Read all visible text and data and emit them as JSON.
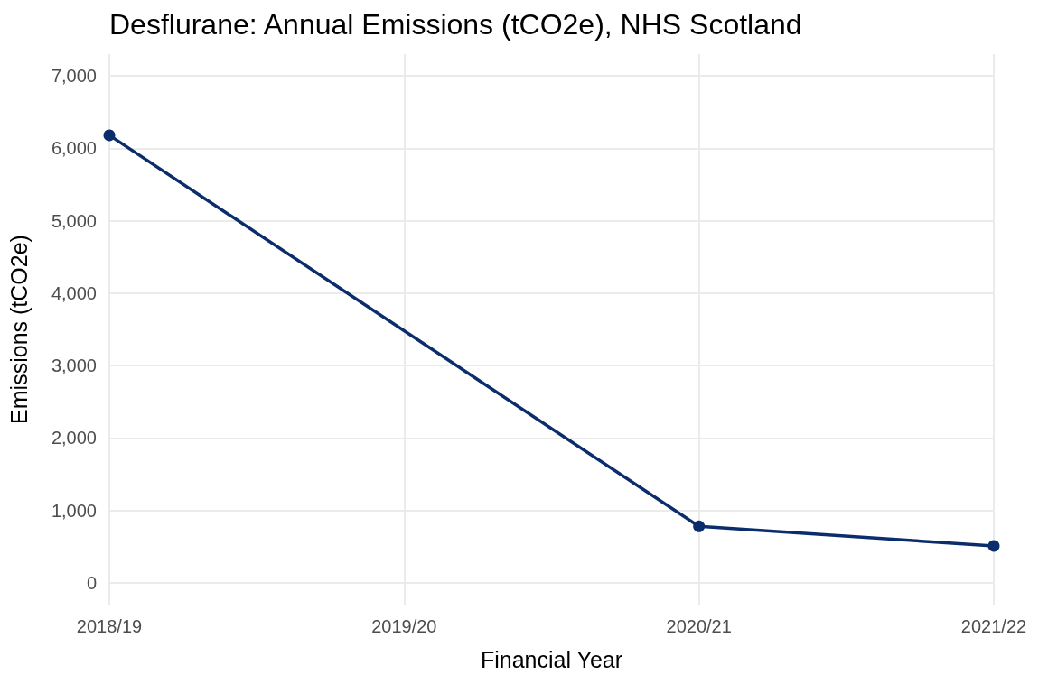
{
  "chart_data": {
    "type": "line",
    "title": "Desflurane: Annual Emissions (tCO2e), NHS Scotland",
    "xlabel": "Financial Year",
    "ylabel": "Emissions (tCO2e)",
    "categories": [
      "2018/19",
      "2019/20",
      "2020/21",
      "2021/22"
    ],
    "series": [
      {
        "color": "#0b2d6b",
        "values": [
          6180,
          null,
          780,
          510
        ]
      }
    ],
    "ylim": [
      -300,
      7300
    ],
    "yticks": [
      {
        "value": 0,
        "label": "0"
      },
      {
        "value": 1000,
        "label": "1,000"
      },
      {
        "value": 2000,
        "label": "2,000"
      },
      {
        "value": 3000,
        "label": "3,000"
      },
      {
        "value": 4000,
        "label": "4,000"
      },
      {
        "value": 5000,
        "label": "5,000"
      },
      {
        "value": 6000,
        "label": "6,000"
      },
      {
        "value": 7000,
        "label": "7,000"
      }
    ],
    "grid": true,
    "marker": "circle",
    "line_style": "solid"
  }
}
